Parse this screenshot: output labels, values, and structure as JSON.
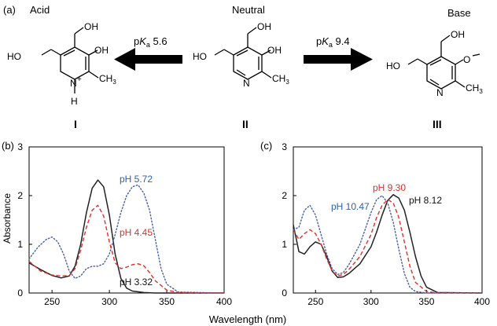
{
  "panel_a": {
    "label": "(a)",
    "species": [
      {
        "title": "Acid",
        "numeral": "I"
      },
      {
        "title": "Neutral",
        "numeral": "II"
      },
      {
        "title": "Base",
        "numeral": "III"
      }
    ],
    "arrows": [
      {
        "label_p": "p",
        "label_k": "K",
        "label_a": "a",
        "label_val": " 5.6",
        "direction": "left"
      },
      {
        "label_p": "p",
        "label_k": "K",
        "label_a": "a",
        "label_val": " 9.4",
        "direction": "right"
      }
    ],
    "atoms": {
      "ho": "HO",
      "oh": "OH",
      "n": "N",
      "h": "H",
      "plus": "+",
      "ch3": "CH",
      "sub3": "3",
      "o_minus": "O"
    }
  },
  "x_axis_label": "Wavelength (nm)",
  "y_axis_label": "Absorbance",
  "chart_data": [
    {
      "panel": "(b)",
      "type": "line",
      "xlabel": "",
      "ylabel": "Absorbance",
      "xlim": [
        230,
        400
      ],
      "ylim": [
        0,
        3
      ],
      "x_ticks": [
        250,
        300,
        350,
        400
      ],
      "y_ticks": [
        0,
        1,
        2,
        3
      ],
      "series": [
        {
          "name": "pH 3.32",
          "color": "#222222",
          "style": "solid",
          "x": [
            230,
            240,
            250,
            258,
            265,
            270,
            275,
            280,
            285,
            290,
            295,
            300,
            305,
            310,
            315,
            320,
            330,
            340,
            350,
            360,
            400
          ],
          "y": [
            0.62,
            0.48,
            0.36,
            0.31,
            0.35,
            0.55,
            1.0,
            1.65,
            2.15,
            2.32,
            2.18,
            1.6,
            0.8,
            0.3,
            0.1,
            0.04,
            0.01,
            0.0,
            0.0,
            0.0,
            0.0
          ]
        },
        {
          "name": "pH 4.45",
          "color": "#e0302a",
          "style": "dashed",
          "x": [
            230,
            240,
            250,
            258,
            265,
            270,
            275,
            280,
            285,
            290,
            295,
            300,
            305,
            310,
            315,
            320,
            325,
            330,
            335,
            340,
            350,
            360,
            400
          ],
          "y": [
            0.65,
            0.45,
            0.37,
            0.35,
            0.36,
            0.5,
            0.88,
            1.35,
            1.7,
            1.8,
            1.58,
            1.05,
            0.62,
            0.5,
            0.53,
            0.58,
            0.6,
            0.56,
            0.42,
            0.25,
            0.06,
            0.01,
            0.0
          ]
        },
        {
          "name": "pH 5.72",
          "color": "#4a5fa8",
          "style": "dotted",
          "x": [
            230,
            238,
            245,
            250,
            255,
            260,
            265,
            270,
            275,
            280,
            285,
            290,
            295,
            300,
            305,
            310,
            315,
            320,
            325,
            330,
            335,
            340,
            345,
            350,
            360,
            400
          ],
          "y": [
            0.7,
            0.95,
            1.1,
            1.15,
            1.05,
            0.8,
            0.45,
            0.3,
            0.35,
            0.5,
            0.55,
            0.55,
            0.6,
            0.8,
            1.2,
            1.65,
            2.0,
            2.18,
            2.22,
            2.05,
            1.7,
            1.1,
            0.5,
            0.18,
            0.02,
            0.0
          ]
        }
      ],
      "annotations": [
        {
          "text": "pH 5.72",
          "color": "#2f62ad"
        },
        {
          "text": "pH 4.45",
          "color": "#e0302a"
        },
        {
          "text": "pH 3.32",
          "color": "#111111"
        }
      ]
    },
    {
      "panel": "(c)",
      "type": "line",
      "xlabel": "",
      "ylabel": "",
      "xlim": [
        230,
        400
      ],
      "ylim": [
        0,
        3
      ],
      "x_ticks": [
        250,
        300,
        350,
        400
      ],
      "y_ticks": [
        0,
        1,
        2,
        3
      ],
      "series": [
        {
          "name": "pH 8.12",
          "color": "#222222",
          "style": "solid",
          "x": [
            230,
            235,
            240,
            245,
            250,
            255,
            260,
            265,
            270,
            275,
            280,
            290,
            300,
            305,
            310,
            315,
            320,
            325,
            330,
            335,
            340,
            345,
            350,
            360,
            400
          ],
          "y": [
            1.4,
            0.85,
            0.8,
            0.95,
            1.05,
            1.0,
            0.75,
            0.45,
            0.32,
            0.33,
            0.4,
            0.6,
            0.95,
            1.25,
            1.6,
            1.9,
            2.02,
            1.95,
            1.7,
            1.25,
            0.75,
            0.35,
            0.12,
            0.01,
            0.0
          ]
        },
        {
          "name": "pH 9.30",
          "color": "#e0302a",
          "style": "dashed",
          "x": [
            230,
            235,
            240,
            245,
            250,
            255,
            260,
            265,
            270,
            275,
            280,
            290,
            300,
            305,
            310,
            315,
            320,
            325,
            330,
            335,
            340,
            350,
            360,
            400
          ],
          "y": [
            1.3,
            1.1,
            1.22,
            1.3,
            1.22,
            1.0,
            0.7,
            0.45,
            0.35,
            0.38,
            0.48,
            0.75,
            1.2,
            1.55,
            1.8,
            1.92,
            1.85,
            1.55,
            1.05,
            0.55,
            0.22,
            0.03,
            0.0,
            0.0
          ]
        },
        {
          "name": "pH 10.47",
          "color": "#4a5fa8",
          "style": "dotted",
          "x": [
            230,
            235,
            240,
            245,
            250,
            255,
            260,
            265,
            270,
            275,
            280,
            290,
            300,
            305,
            310,
            315,
            320,
            325,
            330,
            335,
            340,
            350,
            400
          ],
          "y": [
            1.3,
            1.35,
            1.7,
            1.8,
            1.6,
            1.2,
            0.8,
            0.5,
            0.38,
            0.42,
            0.58,
            1.0,
            1.65,
            1.92,
            2.0,
            1.85,
            1.45,
            0.9,
            0.4,
            0.12,
            0.03,
            0.0,
            0.0
          ]
        }
      ],
      "annotations": [
        {
          "text": "pH 9.30",
          "color": "#e0302a"
        },
        {
          "text": "pH 10.47",
          "color": "#2f62ad"
        },
        {
          "text": "pH 8.12",
          "color": "#111111"
        }
      ]
    }
  ]
}
